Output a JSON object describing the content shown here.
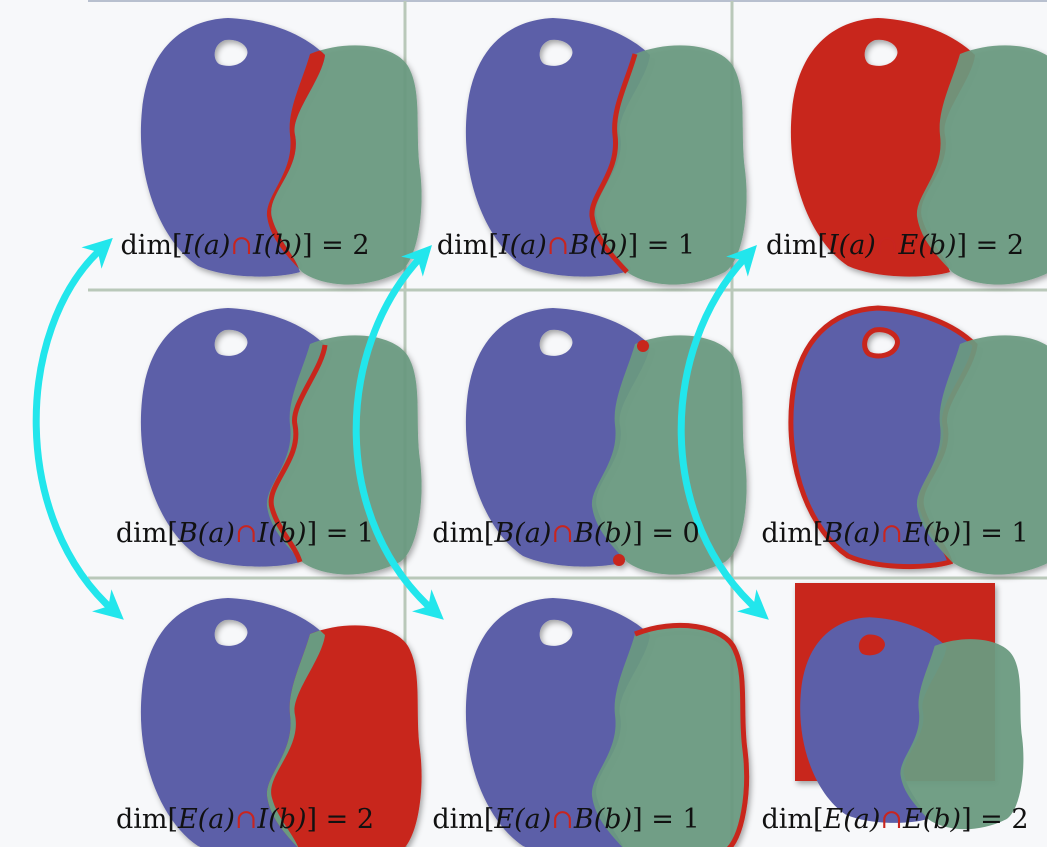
{
  "cells": [
    {
      "id": "II",
      "pre": "dim[",
      "a": "I(a)",
      "op": "∩",
      "b": "I(b)",
      "post": "] = 2"
    },
    {
      "id": "IB",
      "pre": "dim[",
      "a": "I(a)",
      "op": "∩",
      "b": "B(b)",
      "post": "] = 1"
    },
    {
      "id": "IE",
      "pre": "dim[",
      "a": "I(a)",
      "op": "∩",
      "b": "E(b)",
      "post": "] = 2"
    },
    {
      "id": "BI",
      "pre": "dim[",
      "a": "B(a)",
      "op": "∩",
      "b": "I(b)",
      "post": "] = 1"
    },
    {
      "id": "BB",
      "pre": "dim[",
      "a": "B(a)",
      "op": "∩",
      "b": "B(b)",
      "post": "] = 0"
    },
    {
      "id": "BE",
      "pre": "dim[",
      "a": "B(a)",
      "op": "∩",
      "b": "E(b)",
      "post": "] = 1"
    },
    {
      "id": "EI",
      "pre": "dim[",
      "a": "E(a)",
      "op": "∩",
      "b": "I(b)",
      "post": "] = 2"
    },
    {
      "id": "EB",
      "pre": "dim[",
      "a": "E(a)",
      "op": "∩",
      "b": "B(b)",
      "post": "] = 1"
    },
    {
      "id": "EE",
      "pre": "dim[",
      "a": "E(a)",
      "op": "∩",
      "b": "E(b)",
      "post": "] = 2"
    }
  ],
  "colors": {
    "shape_a": "#5c5fa8",
    "shape_b": "#6a9a80",
    "highlight": "#c8251f",
    "arrow": "#22e6ec",
    "grid": "#b9c8b9"
  }
}
